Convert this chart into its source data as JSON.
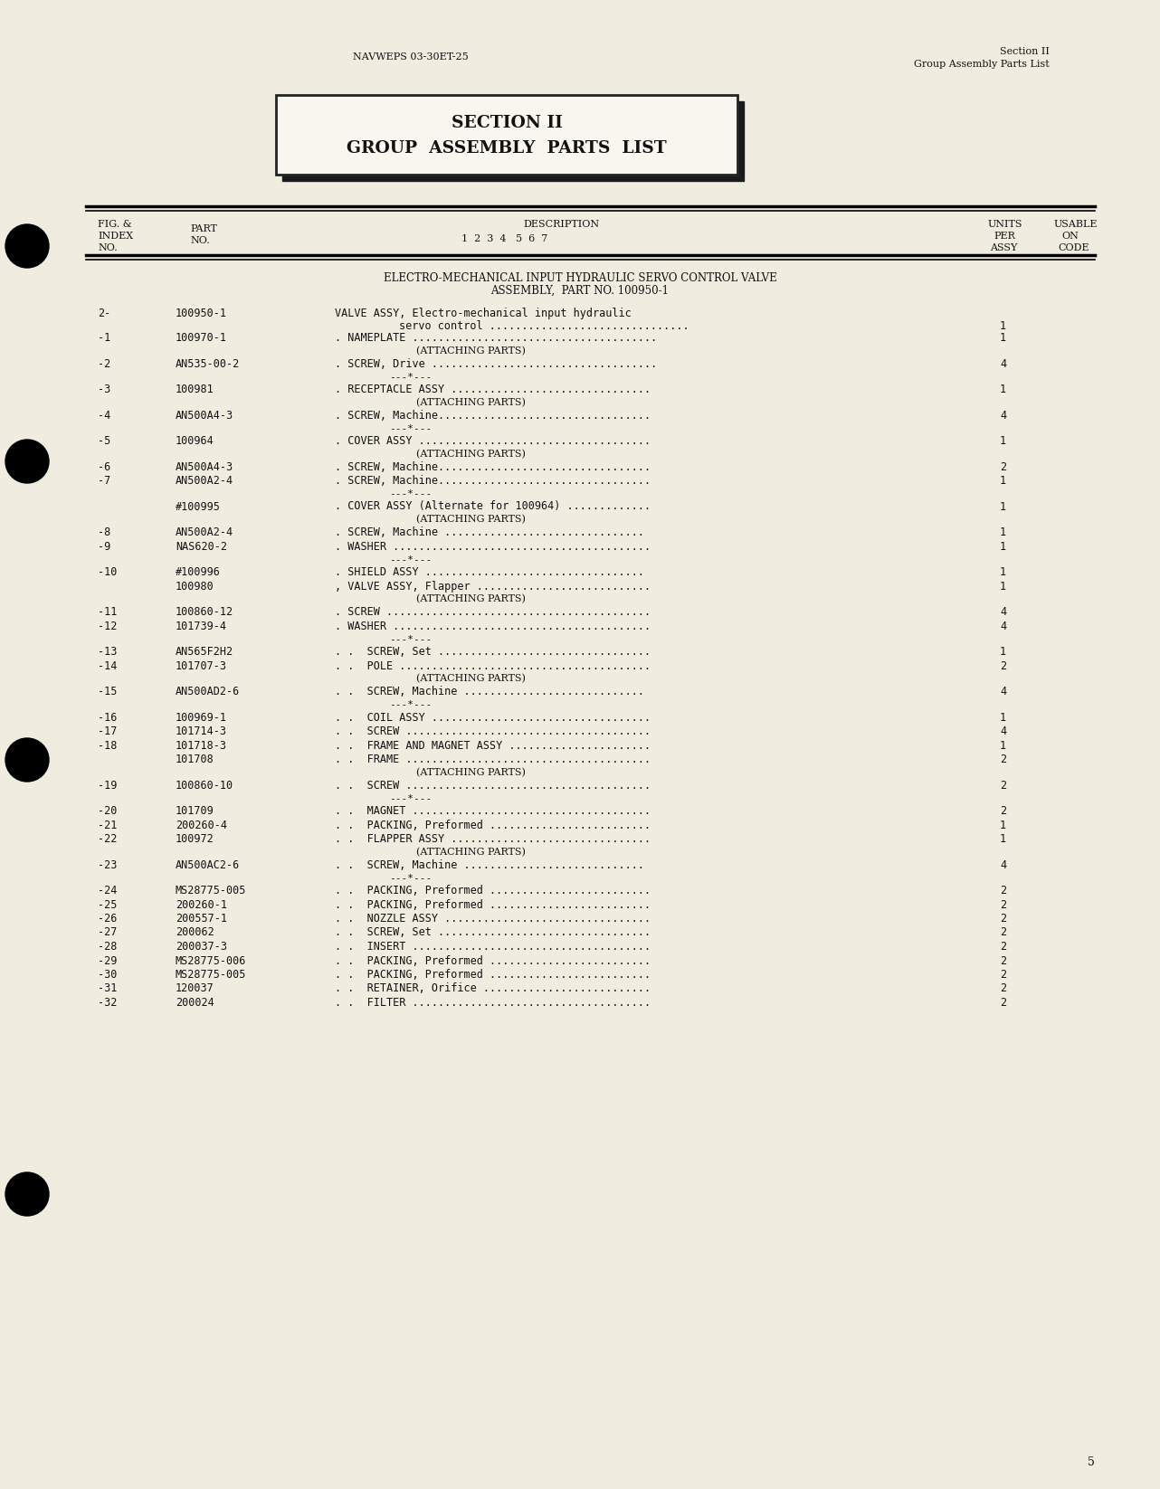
{
  "bg_color": "#f0ede0",
  "header_left": "NAVWEPS 03-30ET-25",
  "header_right_line1": "Section II",
  "header_right_line2": "Group Assembly Parts List",
  "section_title_line1": "SECTION II",
  "section_title_line2": "GROUP  ASSEMBLY  PARTS  LIST",
  "assembly_title_line1": "ELECTRO-MECHANICAL INPUT HYDRAULIC SERVO CONTROL VALVE",
  "assembly_title_line2": "ASSEMBLY,  PART NO. 100950-1",
  "rows": [
    {
      "index": "2-",
      "part": "100950-1",
      "desc1": "VALVE ASSY, Electro-mechanical input hydraulic",
      "desc2": "        servo control ...............................",
      "qty": "1",
      "special": "normal2"
    },
    {
      "index": "-1",
      "part": "100970-1",
      "desc1": ". NAMEPLATE ......................................",
      "desc2": "",
      "qty": "1",
      "special": "normal"
    },
    {
      "index": "",
      "part": "",
      "desc1": "(ATTACHING PARTS)",
      "desc2": "",
      "qty": "",
      "special": "attaching"
    },
    {
      "index": "-2",
      "part": "AN535-00-2",
      "desc1": ". SCREW, Drive ...................................",
      "desc2": "",
      "qty": "4",
      "special": "normal"
    },
    {
      "index": "",
      "part": "",
      "desc1": "---*---",
      "desc2": "",
      "qty": "",
      "special": "star"
    },
    {
      "index": "-3",
      "part": "100981",
      "desc1": ". RECEPTACLE ASSY ...............................",
      "desc2": "",
      "qty": "1",
      "special": "normal"
    },
    {
      "index": "",
      "part": "",
      "desc1": "(ATTACHING PARTS)",
      "desc2": "",
      "qty": "",
      "special": "attaching"
    },
    {
      "index": "-4",
      "part": "AN500A4-3",
      "desc1": ". SCREW, Machine.................................",
      "desc2": "",
      "qty": "4",
      "special": "normal"
    },
    {
      "index": "",
      "part": "",
      "desc1": "---*---",
      "desc2": "",
      "qty": "",
      "special": "star"
    },
    {
      "index": "-5",
      "part": "100964",
      "desc1": ". COVER ASSY ....................................",
      "desc2": "",
      "qty": "1",
      "special": "normal"
    },
    {
      "index": "",
      "part": "",
      "desc1": "(ATTACHING PARTS)",
      "desc2": "",
      "qty": "",
      "special": "attaching"
    },
    {
      "index": "-6",
      "part": "AN500A4-3",
      "desc1": ". SCREW, Machine.................................",
      "desc2": "",
      "qty": "2",
      "special": "normal"
    },
    {
      "index": "-7",
      "part": "AN500A2-4",
      "desc1": ". SCREW, Machine.................................",
      "desc2": "",
      "qty": "1",
      "special": "normal"
    },
    {
      "index": "",
      "part": "",
      "desc1": "---*---",
      "desc2": "",
      "qty": "",
      "special": "star"
    },
    {
      "index": "",
      "part": "#100995",
      "desc1": ". COVER ASSY (Alternate for 100964) .............",
      "desc2": "",
      "qty": "1",
      "special": "normal"
    },
    {
      "index": "",
      "part": "",
      "desc1": "(ATTACHING PARTS)",
      "desc2": "",
      "qty": "",
      "special": "attaching"
    },
    {
      "index": "-8",
      "part": "AN500A2-4",
      "desc1": ". SCREW, Machine ...............................",
      "desc2": "",
      "qty": "1",
      "special": "normal"
    },
    {
      "index": "-9",
      "part": "NAS620-2",
      "desc1": ". WASHER ........................................",
      "desc2": "",
      "qty": "1",
      "special": "normal"
    },
    {
      "index": "",
      "part": "",
      "desc1": "---*---",
      "desc2": "",
      "qty": "",
      "special": "star"
    },
    {
      "index": "-10",
      "part": "#100996",
      "desc1": ". SHIELD ASSY ..................................",
      "desc2": "",
      "qty": "1",
      "special": "normal"
    },
    {
      "index": "",
      "part": "100980",
      "desc1": ", VALVE ASSY, Flapper ...........................",
      "desc2": "",
      "qty": "1",
      "special": "normal"
    },
    {
      "index": "",
      "part": "",
      "desc1": "(ATTACHING PARTS)",
      "desc2": "",
      "qty": "",
      "special": "attaching"
    },
    {
      "index": "-11",
      "part": "100860-12",
      "desc1": ". SCREW .........................................",
      "desc2": "",
      "qty": "4",
      "special": "normal"
    },
    {
      "index": "-12",
      "part": "101739-4",
      "desc1": ". WASHER ........................................",
      "desc2": "",
      "qty": "4",
      "special": "normal"
    },
    {
      "index": "",
      "part": "",
      "desc1": "---*---",
      "desc2": "",
      "qty": "",
      "special": "star"
    },
    {
      "index": "-13",
      "part": "AN565F2H2",
      "desc1": ". .  SCREW, Set .................................",
      "desc2": "",
      "qty": "1",
      "special": "normal"
    },
    {
      "index": "-14",
      "part": "101707-3",
      "desc1": ". .  POLE .......................................",
      "desc2": "",
      "qty": "2",
      "special": "normal"
    },
    {
      "index": "",
      "part": "",
      "desc1": "(ATTACHING PARTS)",
      "desc2": "",
      "qty": "",
      "special": "attaching"
    },
    {
      "index": "-15",
      "part": "AN500AD2-6",
      "desc1": ". .  SCREW, Machine ............................",
      "desc2": "",
      "qty": "4",
      "special": "normal"
    },
    {
      "index": "",
      "part": "",
      "desc1": "---*---",
      "desc2": "",
      "qty": "",
      "special": "star"
    },
    {
      "index": "-16",
      "part": "100969-1",
      "desc1": ". .  COIL ASSY ..................................",
      "desc2": "",
      "qty": "1",
      "special": "normal"
    },
    {
      "index": "-17",
      "part": "101714-3",
      "desc1": ". .  SCREW ......................................",
      "desc2": "",
      "qty": "4",
      "special": "normal"
    },
    {
      "index": "-18",
      "part": "101718-3",
      "desc1": ". .  FRAME AND MAGNET ASSY ......................",
      "desc2": "",
      "qty": "1",
      "special": "normal"
    },
    {
      "index": "",
      "part": "101708",
      "desc1": ". .  FRAME ......................................",
      "desc2": "",
      "qty": "2",
      "special": "normal"
    },
    {
      "index": "",
      "part": "",
      "desc1": "(ATTACHING PARTS)",
      "desc2": "",
      "qty": "",
      "special": "attaching"
    },
    {
      "index": "-19",
      "part": "100860-10",
      "desc1": ". .  SCREW ......................................",
      "desc2": "",
      "qty": "2",
      "special": "normal"
    },
    {
      "index": "",
      "part": "",
      "desc1": "---*---",
      "desc2": "",
      "qty": "",
      "special": "star"
    },
    {
      "index": "-20",
      "part": "101709",
      "desc1": ". .  MAGNET .....................................",
      "desc2": "",
      "qty": "2",
      "special": "normal"
    },
    {
      "index": "-21",
      "part": "200260-4",
      "desc1": ". .  PACKING, Preformed .........................",
      "desc2": "",
      "qty": "1",
      "special": "normal"
    },
    {
      "index": "-22",
      "part": "100972",
      "desc1": ". .  FLAPPER ASSY ...............................",
      "desc2": "",
      "qty": "1",
      "special": "normal"
    },
    {
      "index": "",
      "part": "",
      "desc1": "(ATTACHING PARTS)",
      "desc2": "",
      "qty": "",
      "special": "attaching"
    },
    {
      "index": "-23",
      "part": "AN500AC2-6",
      "desc1": ". .  SCREW, Machine ............................",
      "desc2": "",
      "qty": "4",
      "special": "normal"
    },
    {
      "index": "",
      "part": "",
      "desc1": "---*---",
      "desc2": "",
      "qty": "",
      "special": "star"
    },
    {
      "index": "-24",
      "part": "MS28775-005",
      "desc1": ". .  PACKING, Preformed .........................",
      "desc2": "",
      "qty": "2",
      "special": "normal"
    },
    {
      "index": "-25",
      "part": "200260-1",
      "desc1": ". .  PACKING, Preformed .........................",
      "desc2": "",
      "qty": "2",
      "special": "normal"
    },
    {
      "index": "-26",
      "part": "200557-1",
      "desc1": ". .  NOZZLE ASSY ................................",
      "desc2": "",
      "qty": "2",
      "special": "normal"
    },
    {
      "index": "-27",
      "part": "200062",
      "desc1": ". .  SCREW, Set .................................",
      "desc2": "",
      "qty": "2",
      "special": "normal"
    },
    {
      "index": "-28",
      "part": "200037-3",
      "desc1": ". .  INSERT .....................................",
      "desc2": "",
      "qty": "2",
      "special": "normal"
    },
    {
      "index": "-29",
      "part": "MS28775-006",
      "desc1": ". .  PACKING, Preformed .........................",
      "desc2": "",
      "qty": "2",
      "special": "normal"
    },
    {
      "index": "-30",
      "part": "MS28775-005",
      "desc1": ". .  PACKING, Preformed .........................",
      "desc2": "",
      "qty": "2",
      "special": "normal"
    },
    {
      "index": "-31",
      "part": "120037",
      "desc1": ". .  RETAINER, Orifice ..........................",
      "desc2": "",
      "qty": "2",
      "special": "normal"
    },
    {
      "index": "-32",
      "part": "200024",
      "desc1": ". .  FILTER .....................................",
      "desc2": "",
      "qty": "2",
      "special": "normal"
    }
  ],
  "page_number": "5"
}
